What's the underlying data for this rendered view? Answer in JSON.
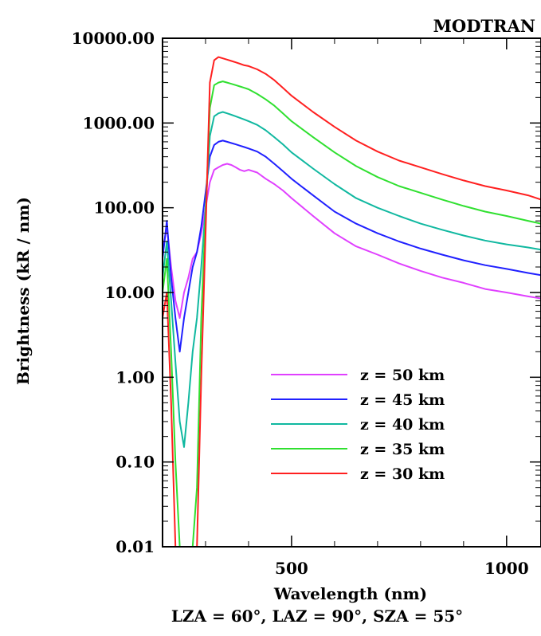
{
  "chart_data": {
    "type": "line",
    "title": "MODTRAN",
    "subtitle": "LZA = 60°, LAZ = 90°, SZA = 55°",
    "xlabel": "Wavelength (nm)",
    "ylabel": "Brightness (kR / nm)",
    "xlim": [
      200,
      1080
    ],
    "ylim": [
      0.01,
      10000
    ],
    "yscale": "log",
    "x_ticks": [
      {
        "value": 500,
        "label": "500"
      },
      {
        "value": 1000,
        "label": "1000"
      }
    ],
    "y_ticks": [
      {
        "value": 0.01,
        "label": "0.01"
      },
      {
        "value": 0.1,
        "label": "0.10"
      },
      {
        "value": 1,
        "label": "1.00"
      },
      {
        "value": 10,
        "label": "10.00"
      },
      {
        "value": 100,
        "label": "100.00"
      },
      {
        "value": 1000,
        "label": "1000.00"
      },
      {
        "value": 10000,
        "label": "10000.00"
      }
    ],
    "grid": false,
    "legend_position": "bottom-right",
    "x": [
      200,
      210,
      220,
      230,
      240,
      250,
      260,
      270,
      280,
      290,
      300,
      310,
      320,
      330,
      340,
      350,
      360,
      370,
      380,
      390,
      400,
      420,
      440,
      460,
      480,
      500,
      550,
      600,
      650,
      700,
      750,
      800,
      850,
      900,
      950,
      1000,
      1050,
      1080
    ],
    "series": [
      {
        "name": "z = 50 km",
        "color": "#e040ff",
        "values": [
          30,
          60,
          20,
          8,
          5,
          10,
          15,
          25,
          30,
          50,
          100,
          200,
          280,
          300,
          320,
          330,
          320,
          300,
          280,
          270,
          280,
          260,
          220,
          190,
          160,
          130,
          80,
          50,
          35,
          28,
          22,
          18,
          15,
          13,
          11,
          10,
          9,
          8.5
        ]
      },
      {
        "name": "z = 45 km",
        "color": "#2020ff",
        "values": [
          25,
          70,
          15,
          5,
          2,
          5,
          10,
          20,
          30,
          60,
          150,
          400,
          550,
          600,
          620,
          600,
          580,
          560,
          540,
          520,
          500,
          460,
          400,
          330,
          270,
          220,
          140,
          90,
          65,
          50,
          40,
          33,
          28,
          24,
          21,
          19,
          17,
          16
        ]
      },
      {
        "name": "z = 40 km",
        "color": "#10b8a0",
        "values": [
          15,
          40,
          8,
          1.5,
          0.3,
          0.15,
          0.5,
          2,
          5,
          20,
          100,
          700,
          1200,
          1300,
          1350,
          1300,
          1250,
          1200,
          1150,
          1100,
          1050,
          950,
          820,
          680,
          560,
          450,
          290,
          190,
          130,
          100,
          80,
          65,
          55,
          47,
          41,
          37,
          34,
          32
        ]
      },
      {
        "name": "z = 35 km",
        "color": "#30e030",
        "values": [
          10,
          25,
          2,
          0.1,
          0.01,
          0.01,
          0.01,
          0.01,
          0.05,
          5,
          80,
          1500,
          2800,
          3000,
          3100,
          3000,
          2900,
          2800,
          2700,
          2600,
          2500,
          2200,
          1900,
          1600,
          1300,
          1050,
          680,
          450,
          310,
          230,
          180,
          150,
          125,
          105,
          90,
          80,
          70,
          65
        ]
      },
      {
        "name": "z = 30 km",
        "color": "#ff2020",
        "values": [
          5,
          10,
          0.5,
          0.01,
          0.01,
          0.01,
          0.01,
          0.01,
          0.01,
          1,
          50,
          3000,
          5500,
          6000,
          5800,
          5600,
          5400,
          5200,
          5000,
          4800,
          4700,
          4300,
          3800,
          3200,
          2600,
          2100,
          1350,
          900,
          620,
          460,
          360,
          300,
          250,
          210,
          180,
          160,
          140,
          125
        ]
      }
    ]
  }
}
